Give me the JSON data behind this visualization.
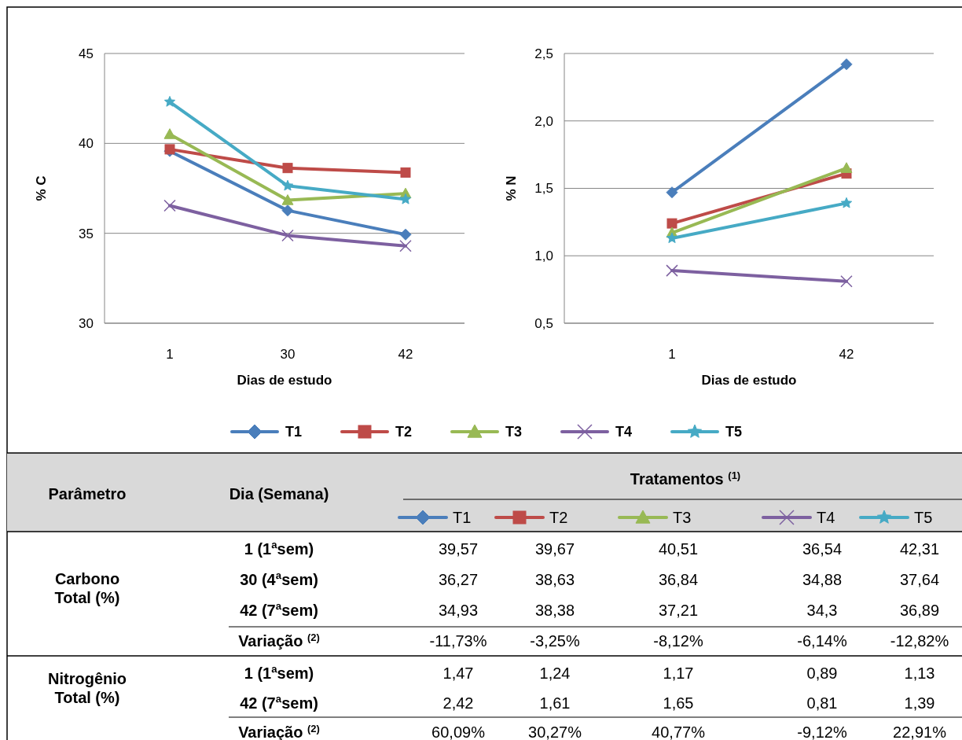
{
  "chart_data": [
    {
      "type": "line",
      "categories": [
        "1",
        "30",
        "42"
      ],
      "xlabel": "Dias de estudo",
      "ylabel": "% C",
      "ylim": [
        30,
        45
      ],
      "yticks": [
        30,
        35,
        40,
        45
      ],
      "grid": "y",
      "legend": "bottom",
      "series": [
        {
          "name": "T1",
          "color": "#4a7ebb",
          "marker": "diamond",
          "values": [
            39.57,
            36.27,
            34.93
          ]
        },
        {
          "name": "T2",
          "color": "#be4b48",
          "marker": "square",
          "values": [
            39.67,
            38.63,
            38.38
          ]
        },
        {
          "name": "T3",
          "color": "#98b954",
          "marker": "triangle",
          "values": [
            40.51,
            36.84,
            37.21
          ]
        },
        {
          "name": "T4",
          "color": "#7d60a0",
          "marker": "cross",
          "values": [
            36.54,
            34.88,
            34.3
          ]
        },
        {
          "name": "T5",
          "color": "#46aac5",
          "marker": "star",
          "values": [
            42.31,
            37.64,
            36.89
          ]
        }
      ],
      "annotations": [
        "Parâmetro",
        "Dia (Semana)",
        "Tratamentos $^{(1)}$",
        "Carbono Total (%)",
        "1 (1ªsem)",
        "39,57",
        "39,67",
        "40,51",
        "36,54",
        "42,31",
        "30 (4ªsem)",
        "36,27",
        "38,63",
        "36,84",
        "34,88",
        "37,64",
        "42 (7ªsem)",
        "34,93",
        "38,38",
        "37,21",
        "34,3",
        "36,89",
        "Variação $^{(2)}$",
        "-11,73%",
        "-3,25%",
        "-8,12%",
        "-6,14%",
        "-12,82%"
      ]
    },
    {
      "type": "line",
      "categories": [
        "1",
        "42"
      ],
      "xlabel": "Dias de estudo",
      "ylabel": "% N",
      "ylim": [
        0.5,
        2.5
      ],
      "yticks": [
        {
          "value": 0.5,
          "label": "0,5"
        },
        {
          "value": 1,
          "label": "1,0"
        },
        {
          "value": 1.5,
          "label": "1,5"
        },
        {
          "value": 2,
          "label": "2,0"
        },
        {
          "value": 2.5,
          "label": "2,5"
        }
      ],
      "grid": "y",
      "legend": "bottom",
      "series": [
        {
          "name": "T1",
          "color": "#4a7ebb",
          "marker": "diamond",
          "values": [
            1.47,
            2.42
          ]
        },
        {
          "name": "T2",
          "color": "#be4b48",
          "marker": "square",
          "values": [
            1.24,
            1.61
          ]
        },
        {
          "name": "T3",
          "color": "#98b954",
          "marker": "triangle",
          "values": [
            1.17,
            1.65
          ]
        },
        {
          "name": "T4",
          "color": "#7d60a0",
          "marker": "cross",
          "values": [
            0.89,
            0.81
          ]
        },
        {
          "name": "T5",
          "color": "#46aac5",
          "marker": "star",
          "values": [
            1.13,
            1.39
          ]
        }
      ],
      "annotations": [
        "Nitrogênio Total (%)",
        "1 (1ªsem)",
        "1,47",
        "1,24",
        "1,17",
        "0,89",
        "1,13",
        "42 (7ªsem)",
        "2,42",
        "1,61",
        "1,65",
        "0,81",
        "1,39",
        "Variação $^{(2)}$",
        "60,09%",
        "30,27%",
        "40,77%",
        "-9,12%",
        "22,91%"
      ]
    }
  ]
}
